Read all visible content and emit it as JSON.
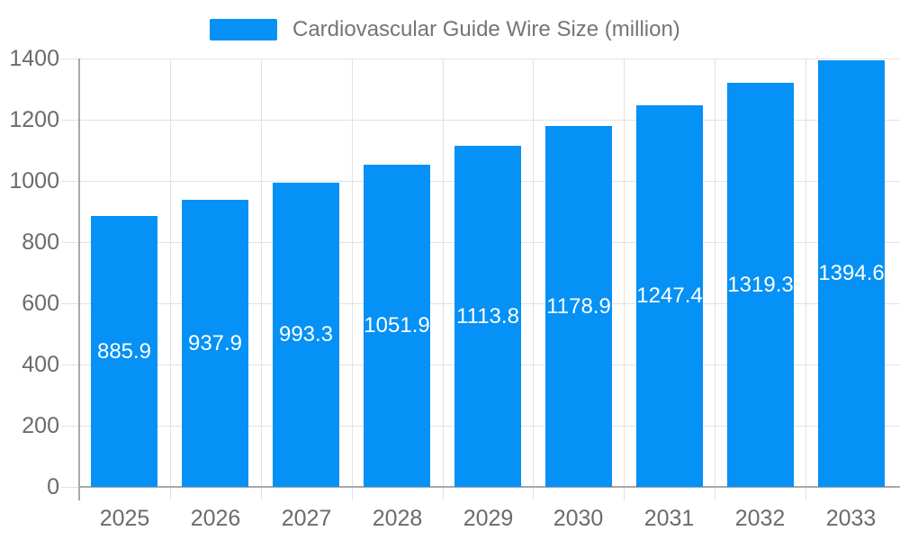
{
  "chart_data": {
    "type": "bar",
    "title": "Cardiovascular Guide Wire Size (million)",
    "legend": [
      "Cardiovascular Guide Wire Size (million)"
    ],
    "legend_position": "top-center",
    "categories": [
      "2025",
      "2026",
      "2027",
      "2028",
      "2029",
      "2030",
      "2031",
      "2032",
      "2033"
    ],
    "series": [
      {
        "name": "Cardiovascular Guide Wire Size (million)",
        "values": [
          885.9,
          937.9,
          993.3,
          1051.9,
          1113.8,
          1178.9,
          1247.4,
          1319.3,
          1394.6
        ]
      }
    ],
    "value_labels": [
      "885.9",
      "937.9",
      "993.3",
      "1051.9",
      "1113.8",
      "1178.9",
      "1247.4",
      "1319.3",
      "1394.6"
    ],
    "xlabel": "",
    "ylabel": "",
    "ylim": [
      0,
      1400
    ],
    "ytick_step": 200,
    "yticks": [
      0,
      200,
      400,
      600,
      800,
      1000,
      1200,
      1400
    ],
    "grid": true
  },
  "colors": {
    "bar": "#0591F5",
    "gridline": "#e2e2e2",
    "axis_line": "#a8a8a8",
    "tick_text": "#6b6b6b",
    "legend_text": "#757575",
    "value_text": "#ffffff",
    "background": "#ffffff"
  }
}
